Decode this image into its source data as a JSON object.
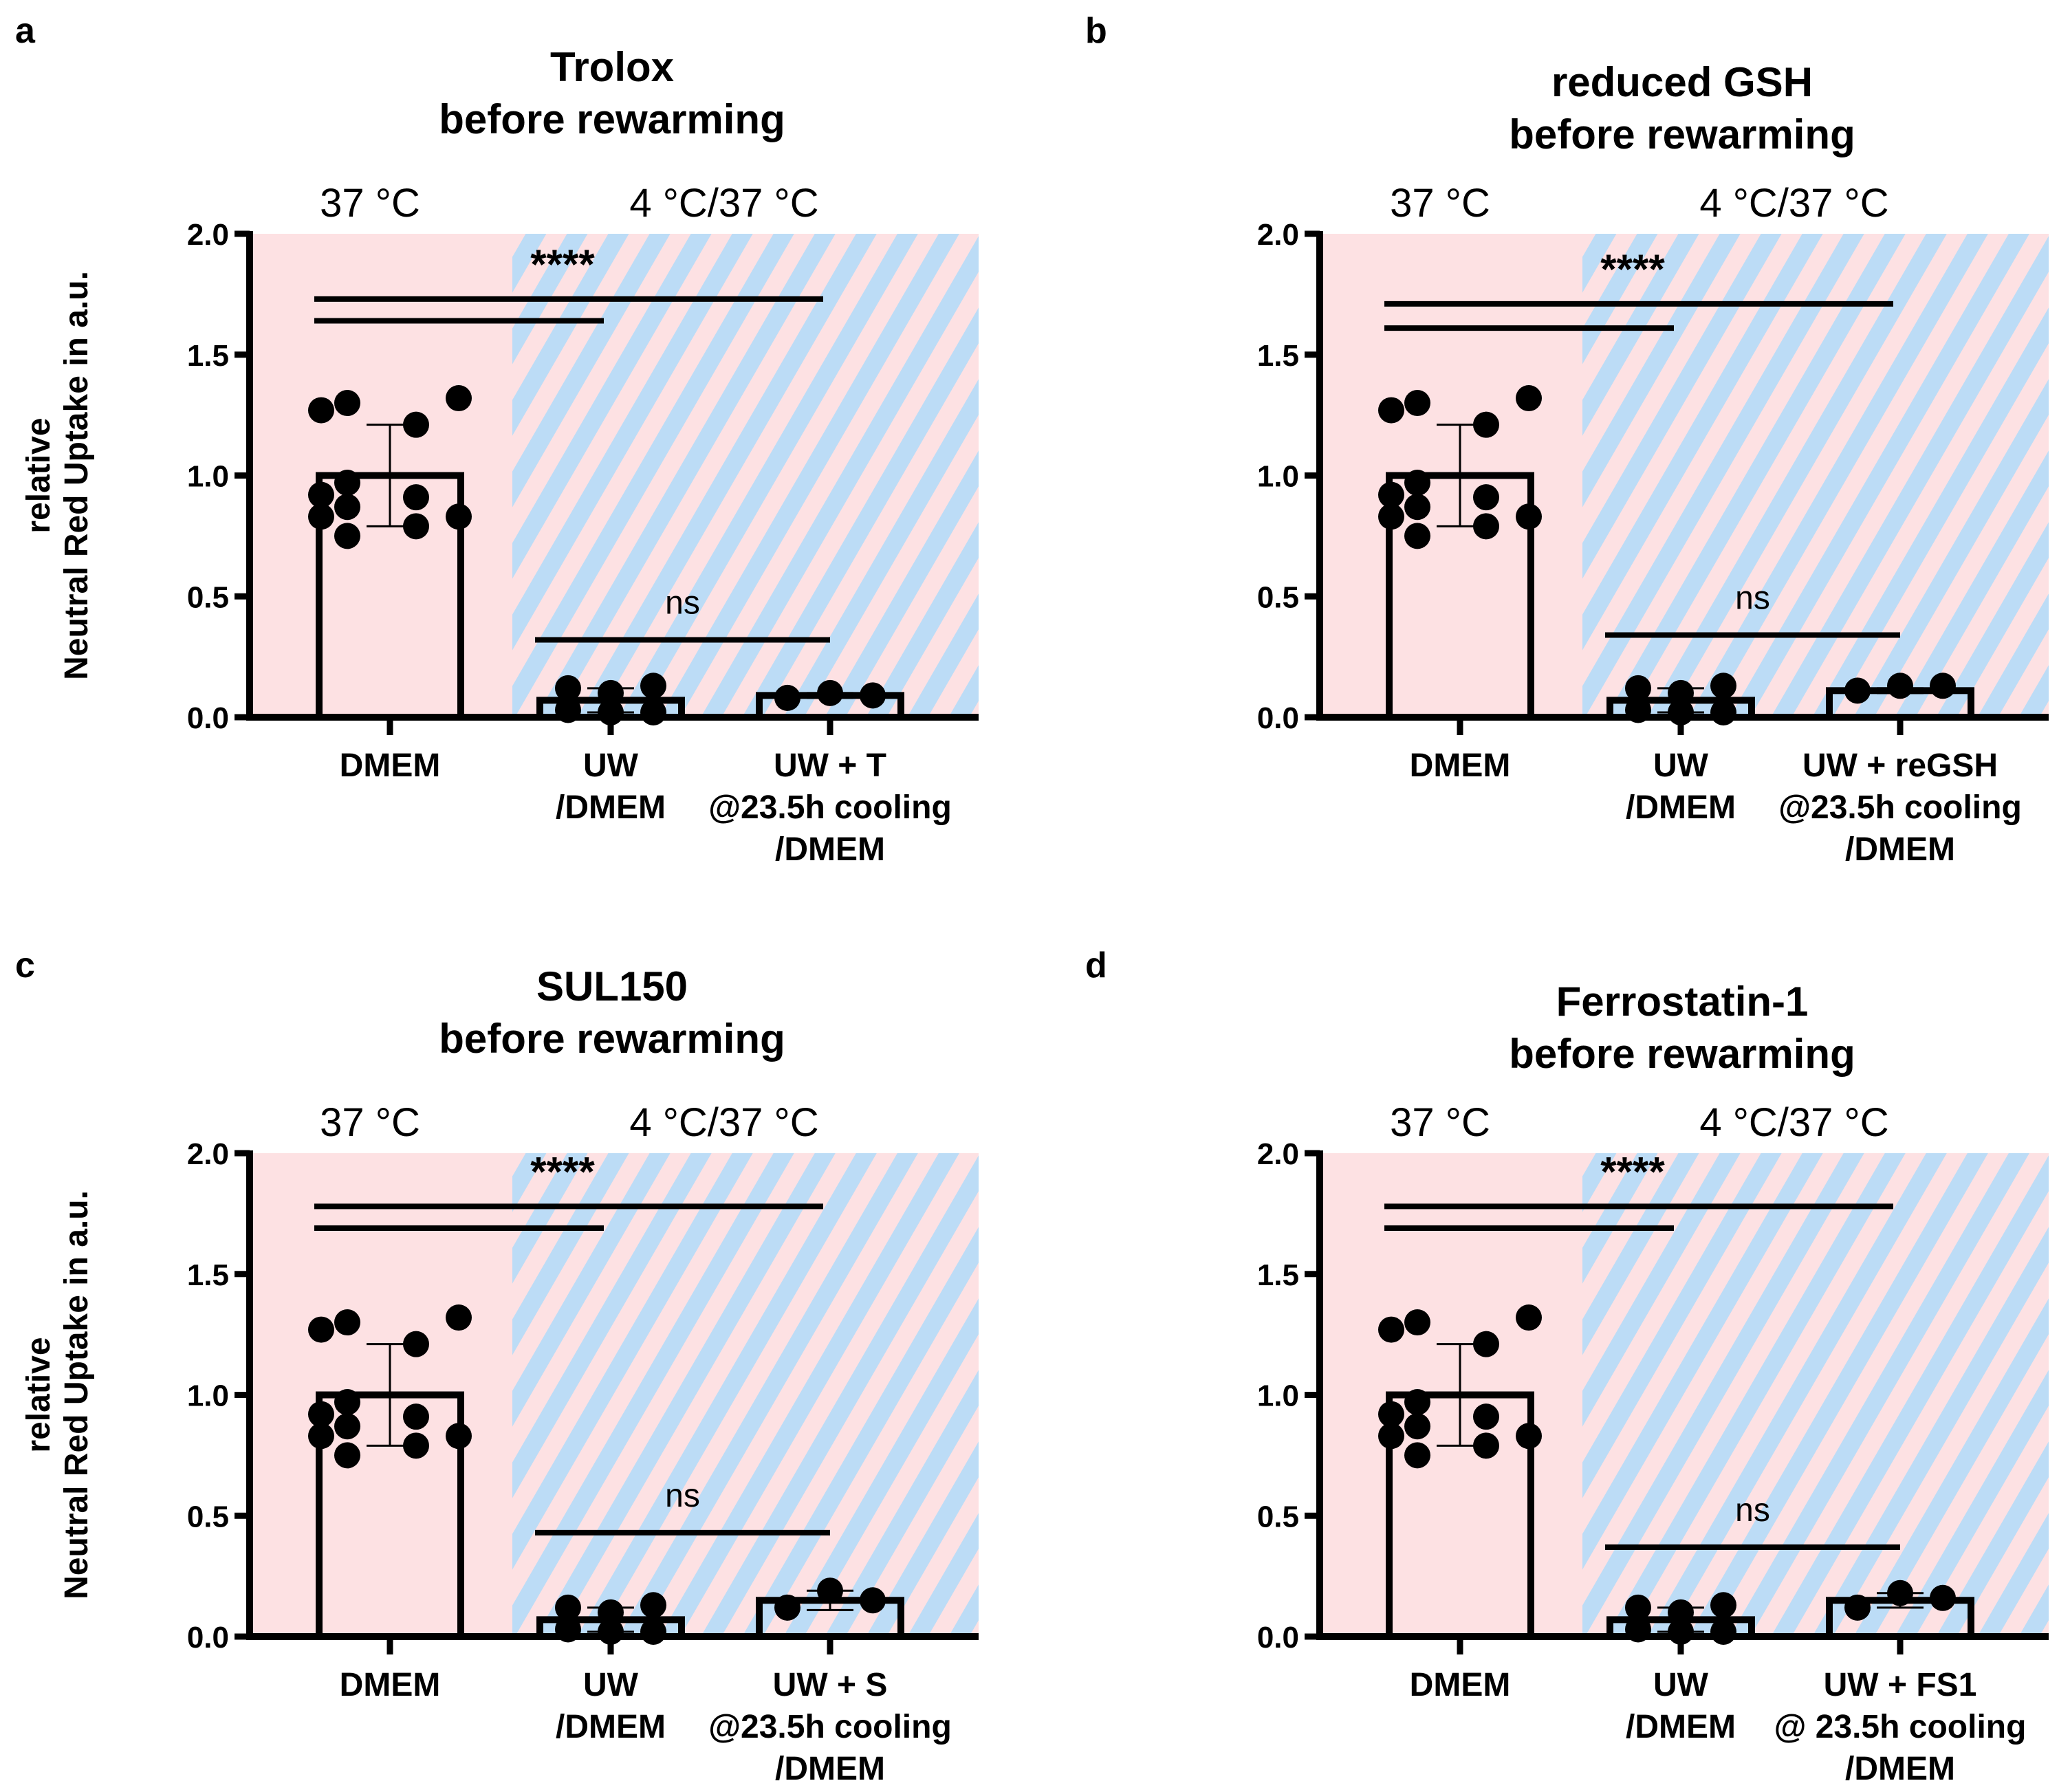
{
  "colors": {
    "warm": "#fde1e3",
    "cold": "#bcdcf6",
    "ink": "#000000"
  },
  "chart_data": [
    {
      "type": "bar",
      "panel_label": "a",
      "title": [
        "Trolox",
        "before rewarming"
      ],
      "region_labels": [
        "37 °C",
        "4 °C/37 °C"
      ],
      "ylabel": [
        "relative",
        "Neutral Red Uptake in a.u."
      ],
      "ylim": [
        0,
        2.0
      ],
      "yticks": [
        "0.0",
        "0.5",
        "1.0",
        "1.5",
        "2.0"
      ],
      "categories": [
        [
          "DMEM"
        ],
        [
          "UW",
          "/DMEM"
        ],
        [
          "UW + T",
          "@23.5h cooling",
          "/DMEM"
        ]
      ],
      "means": [
        1.0,
        0.07,
        0.09
      ],
      "sd": [
        0.21,
        0.05,
        0.01
      ],
      "points": [
        [
          1.27,
          1.3,
          1.32,
          1.21,
          0.97,
          0.92,
          0.91,
          0.87,
          0.83,
          0.83,
          0.79,
          0.75
        ],
        [
          0.12,
          0.1,
          0.13,
          0.03,
          0.02,
          0.02
        ],
        [
          0.08,
          0.1,
          0.09
        ]
      ],
      "significance": [
        {
          "from": 0,
          "to": 2,
          "y": 1.73,
          "label": "****"
        },
        {
          "from": 0,
          "to": 1,
          "y": 1.64,
          "label": ""
        },
        {
          "from": 1,
          "to": 2,
          "y": 0.32,
          "label": "ns"
        }
      ]
    },
    {
      "type": "bar",
      "panel_label": "b",
      "title": [
        "reduced GSH",
        "before rewarming"
      ],
      "region_labels": [
        "37 °C",
        "4 °C/37 °C"
      ],
      "ylabel": [],
      "ylim": [
        0,
        2.0
      ],
      "yticks": [
        "0.0",
        "0.5",
        "1.0",
        "1.5",
        "2.0"
      ],
      "categories": [
        [
          "DMEM"
        ],
        [
          "UW",
          "/DMEM"
        ],
        [
          "UW + reGSH",
          "@23.5h cooling",
          "/DMEM"
        ]
      ],
      "means": [
        1.0,
        0.07,
        0.11
      ],
      "sd": [
        0.21,
        0.05,
        0.01
      ],
      "points": [
        [
          1.27,
          1.3,
          1.32,
          1.21,
          0.97,
          0.92,
          0.91,
          0.87,
          0.83,
          0.83,
          0.79,
          0.75
        ],
        [
          0.12,
          0.1,
          0.13,
          0.03,
          0.02,
          0.02
        ],
        [
          0.11,
          0.13,
          0.13
        ]
      ],
      "significance": [
        {
          "from": 0,
          "to": 2,
          "y": 1.71,
          "label": "****"
        },
        {
          "from": 0,
          "to": 1,
          "y": 1.61,
          "label": ""
        },
        {
          "from": 1,
          "to": 2,
          "y": 0.34,
          "label": "ns"
        }
      ]
    },
    {
      "type": "bar",
      "panel_label": "c",
      "title": [
        "SUL150",
        "before rewarming"
      ],
      "region_labels": [
        "37 °C",
        "4 °C/37 °C"
      ],
      "ylabel": [
        "relative",
        "Neutral Red Uptake in a.u."
      ],
      "ylim": [
        0,
        2.0
      ],
      "yticks": [
        "0.0",
        "0.5",
        "1.0",
        "1.5",
        "2.0"
      ],
      "categories": [
        [
          "DMEM"
        ],
        [
          "UW",
          "/DMEM"
        ],
        [
          "UW + S",
          "@23.5h cooling",
          "/DMEM"
        ]
      ],
      "means": [
        1.0,
        0.07,
        0.15
      ],
      "sd": [
        0.21,
        0.05,
        0.04
      ],
      "points": [
        [
          1.27,
          1.3,
          1.32,
          1.21,
          0.97,
          0.92,
          0.91,
          0.87,
          0.83,
          0.83,
          0.79,
          0.75
        ],
        [
          0.12,
          0.1,
          0.13,
          0.03,
          0.02,
          0.02
        ],
        [
          0.12,
          0.19,
          0.15
        ]
      ],
      "significance": [
        {
          "from": 0,
          "to": 2,
          "y": 1.78,
          "label": "****"
        },
        {
          "from": 0,
          "to": 1,
          "y": 1.69,
          "label": ""
        },
        {
          "from": 1,
          "to": 2,
          "y": 0.43,
          "label": "ns"
        }
      ]
    },
    {
      "type": "bar",
      "panel_label": "d",
      "title": [
        "Ferrostatin-1",
        "before rewarming"
      ],
      "region_labels": [
        "37 °C",
        "4 °C/37 °C"
      ],
      "ylabel": [],
      "ylim": [
        0,
        2.0
      ],
      "yticks": [
        "0.0",
        "0.5",
        "1.0",
        "1.5",
        "2.0"
      ],
      "categories": [
        [
          "DMEM"
        ],
        [
          "UW",
          "/DMEM"
        ],
        [
          "UW + FS1",
          "@ 23.5h cooling",
          "/DMEM"
        ]
      ],
      "means": [
        1.0,
        0.07,
        0.15
      ],
      "sd": [
        0.21,
        0.05,
        0.03
      ],
      "points": [
        [
          1.27,
          1.3,
          1.32,
          1.21,
          0.97,
          0.92,
          0.91,
          0.87,
          0.83,
          0.83,
          0.79,
          0.75
        ],
        [
          0.12,
          0.1,
          0.13,
          0.03,
          0.02,
          0.02
        ],
        [
          0.12,
          0.18,
          0.16
        ]
      ],
      "significance": [
        {
          "from": 0,
          "to": 2,
          "y": 1.78,
          "label": "****"
        },
        {
          "from": 0,
          "to": 1,
          "y": 1.69,
          "label": ""
        },
        {
          "from": 1,
          "to": 2,
          "y": 0.37,
          "label": "ns"
        }
      ]
    }
  ]
}
